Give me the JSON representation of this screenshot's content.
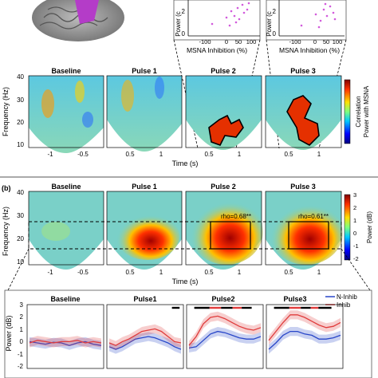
{
  "colors": {
    "brain_gray": "#8c8c8c",
    "brain_highlight": "#b43cc8",
    "scatter_point": "#d25adc",
    "n_inhib": "#2846c8",
    "inhib": "#e03c3c",
    "sig_black": "#000000"
  },
  "top_scatter": {
    "xlabel": "MSNA Inhibition (%)",
    "ylabel_left": "Power (c",
    "ylabel_right": "Power (c",
    "y_ticks": [
      "2",
      "0"
    ],
    "x_ticks": [
      "-100",
      "0",
      "50",
      "100"
    ]
  },
  "panel_a": {
    "ylabel": "Frequency (Hz)",
    "xlabel": "Time (s)",
    "y_ticks": [
      "40",
      "30",
      "20",
      "10"
    ],
    "titles": [
      "Baseline",
      "Pulse 1",
      "Pulse 2",
      "Pulse 3"
    ],
    "x_ticks_baseline": [
      "-1",
      "-0.5"
    ],
    "x_ticks_pulse": [
      "0.5",
      "1"
    ],
    "colorbar_label_1": "Correlation",
    "colorbar_label_2": "Power with MSNA"
  },
  "panel_b": {
    "label": "(b)",
    "ylabel": "Frequency (Hz)",
    "xlabel": "Time (s)",
    "y_ticks": [
      "40",
      "30",
      "20",
      "10"
    ],
    "titles": [
      "Baseline",
      "Pulse 1",
      "Pulse 2",
      "Pulse 3"
    ],
    "x_ticks_baseline": [
      "-1",
      "-0.5"
    ],
    "x_ticks_pulse": [
      "0.5",
      "1"
    ],
    "rho_pulse2": "rho=0.68**",
    "rho_pulse3": "rho=0.61**",
    "colorbar_label": "Power (dB)",
    "colorbar_ticks": [
      "3",
      "2",
      "1",
      "0",
      "-1",
      "-2"
    ]
  },
  "panel_c": {
    "ylabel": "Power (dB)",
    "y_ticks": [
      "3",
      "2",
      "1",
      "0",
      "-1",
      "-2"
    ],
    "titles": [
      "Baseline",
      "Pulse1",
      "Pulse2",
      "Pulse3"
    ],
    "legend": [
      "N-Inhib",
      "Inhib"
    ]
  },
  "chart_data": {
    "type": "line",
    "title": "",
    "ylabel": "Power (dB)",
    "ylim": [
      -2,
      3
    ],
    "series": [
      {
        "name": "N-Inhib",
        "panels": {
          "Baseline": [
            0.1,
            0.0,
            -0.1,
            0.05,
            0.0,
            -0.2,
            0.0,
            0.1,
            -0.1,
            -0.2
          ],
          "Pulse1": [
            -0.3,
            -0.5,
            -0.3,
            0.0,
            0.3,
            0.4,
            0.5,
            0.4,
            0.2,
            0.0,
            -0.3,
            -0.5
          ],
          "Pulse2": [
            -0.4,
            -0.3,
            0.2,
            0.7,
            0.9,
            0.8,
            0.6,
            0.4,
            0.3,
            0.3,
            0.5
          ],
          "Pulse3": [
            -0.5,
            0.0,
            0.6,
            0.9,
            0.9,
            0.7,
            0.6,
            0.3,
            0.3,
            0.4,
            0.6
          ]
        }
      },
      {
        "name": "Inhib",
        "panels": {
          "Baseline": [
            0.0,
            0.2,
            0.1,
            0.0,
            0.1,
            0.1,
            0.2,
            0.0,
            0.1,
            0.0
          ],
          "Pulse1": [
            0.0,
            -0.2,
            0.1,
            0.3,
            0.6,
            0.9,
            1.0,
            1.1,
            0.9,
            0.5,
            0.1,
            0.0
          ],
          "Pulse2": [
            -0.2,
            0.5,
            1.5,
            2.0,
            2.1,
            1.9,
            1.6,
            1.3,
            1.1,
            1.0,
            1.2
          ],
          "Pulse3": [
            0.2,
            0.9,
            1.6,
            2.2,
            2.2,
            2.0,
            1.7,
            1.4,
            1.2,
            1.3,
            1.6
          ]
        }
      }
    ]
  }
}
